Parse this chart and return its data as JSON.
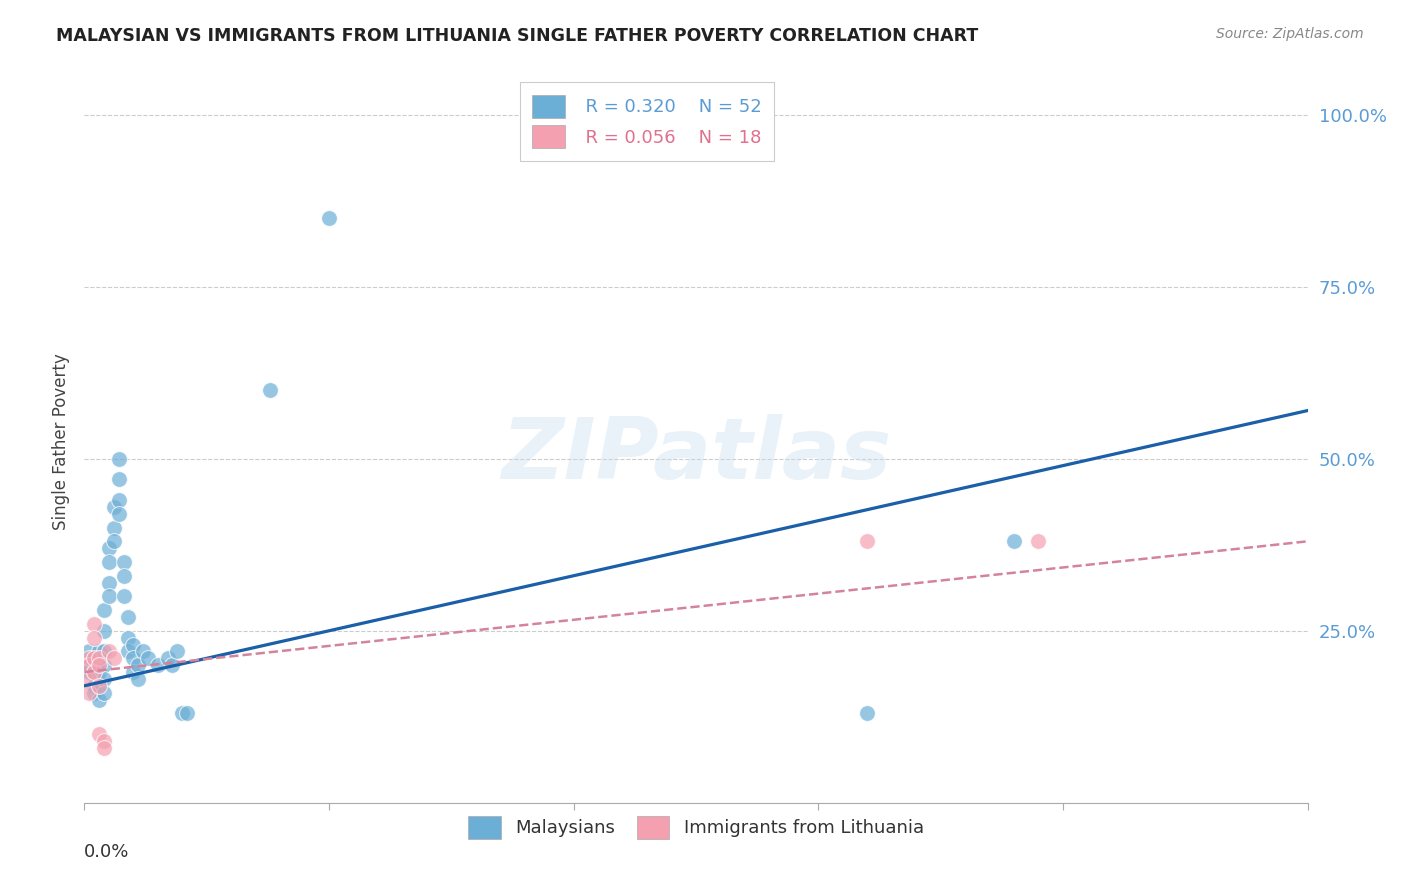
{
  "title": "MALAYSIAN VS IMMIGRANTS FROM LITHUANIA SINGLE FATHER POVERTY CORRELATION CHART",
  "source": "Source: ZipAtlas.com",
  "ylabel": "Single Father Poverty",
  "xlim": [
    0.0,
    0.25
  ],
  "ylim": [
    0.0,
    1.05
  ],
  "ytick_vals": [
    0.0,
    0.25,
    0.5,
    0.75,
    1.0
  ],
  "ytick_labels": [
    "",
    "25.0%",
    "50.0%",
    "75.0%",
    "100.0%"
  ],
  "legend_blue_r": "R = 0.320",
  "legend_blue_n": "N = 52",
  "legend_pink_r": "R = 0.056",
  "legend_pink_n": "N = 18",
  "legend_label_blue": "Malaysians",
  "legend_label_pink": "Immigrants from Lithuania",
  "blue_color": "#6baed6",
  "pink_color": "#f4a0b0",
  "trend_blue_color": "#1a5fa8",
  "trend_pink_color": "#d4849a",
  "watermark": "ZIPatlas",
  "background_color": "#ffffff",
  "grid_color": "#cccccc",
  "blue_x": [
    0.001,
    0.001,
    0.001,
    0.002,
    0.002,
    0.002,
    0.002,
    0.003,
    0.003,
    0.003,
    0.003,
    0.003,
    0.004,
    0.004,
    0.004,
    0.004,
    0.004,
    0.004,
    0.005,
    0.005,
    0.005,
    0.005,
    0.006,
    0.006,
    0.006,
    0.007,
    0.007,
    0.007,
    0.007,
    0.008,
    0.008,
    0.008,
    0.009,
    0.009,
    0.009,
    0.01,
    0.01,
    0.01,
    0.011,
    0.011,
    0.012,
    0.013,
    0.015,
    0.017,
    0.018,
    0.019,
    0.02,
    0.021,
    0.038,
    0.05,
    0.16,
    0.19
  ],
  "blue_y": [
    0.19,
    0.22,
    0.2,
    0.21,
    0.19,
    0.17,
    0.16,
    0.22,
    0.21,
    0.19,
    0.17,
    0.15,
    0.28,
    0.25,
    0.22,
    0.2,
    0.18,
    0.16,
    0.37,
    0.35,
    0.32,
    0.3,
    0.43,
    0.4,
    0.38,
    0.5,
    0.47,
    0.44,
    0.42,
    0.35,
    0.33,
    0.3,
    0.27,
    0.24,
    0.22,
    0.23,
    0.21,
    0.19,
    0.2,
    0.18,
    0.22,
    0.21,
    0.2,
    0.21,
    0.2,
    0.22,
    0.13,
    0.13,
    0.6,
    0.85,
    0.13,
    0.38
  ],
  "pink_x": [
    0.001,
    0.001,
    0.001,
    0.001,
    0.002,
    0.002,
    0.002,
    0.002,
    0.003,
    0.003,
    0.003,
    0.003,
    0.004,
    0.004,
    0.005,
    0.006,
    0.16,
    0.195
  ],
  "pink_y": [
    0.21,
    0.2,
    0.18,
    0.16,
    0.26,
    0.24,
    0.21,
    0.19,
    0.21,
    0.2,
    0.17,
    0.1,
    0.09,
    0.08,
    0.22,
    0.21,
    0.38,
    0.38
  ],
  "blue_trend_x0": 0.0,
  "blue_trend_y0": 0.17,
  "blue_trend_x1": 0.25,
  "blue_trend_y1": 0.57,
  "pink_trend_x0": 0.0,
  "pink_trend_y0": 0.19,
  "pink_trend_x1": 0.25,
  "pink_trend_y1": 0.38
}
